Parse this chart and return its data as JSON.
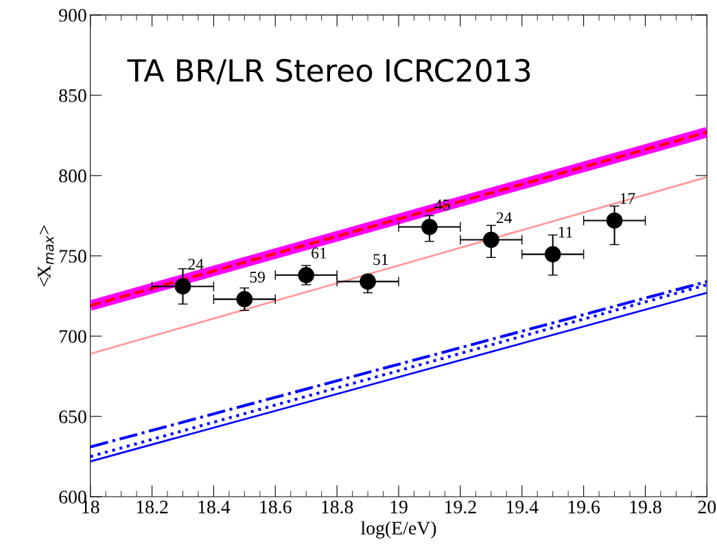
{
  "chart_data": {
    "type": "line",
    "title": "TA BR/LR Stereo ICRC2013",
    "xlabel": "log(E/eV)",
    "ylabel": "<X$_{max}$>",
    "xlim": [
      18,
      20
    ],
    "xticks": [
      18,
      18.2,
      18.4,
      18.6,
      18.8,
      19,
      19.2,
      19.4,
      19.6,
      19.8,
      20
    ],
    "ylim": [
      600,
      900
    ],
    "yticks": [
      600,
      650,
      700,
      750,
      800,
      850,
      900
    ],
    "grid": false,
    "legend": false,
    "series": [
      {
        "color": "#ff00ff",
        "x": [
          18,
          20
        ],
        "values": [
          719,
          827
        ],
        "line_style": "solid"
      },
      {
        "color": "#ff0000",
        "x": [
          18,
          20
        ],
        "values": [
          719,
          827
        ],
        "line_style": "dashed"
      },
      {
        "color": "#ff9999",
        "x": [
          18,
          20
        ],
        "values": [
          689,
          799
        ],
        "line_style": "solid"
      },
      {
        "color": "#0000ff",
        "x": [
          18,
          20
        ],
        "values": [
          622,
          727
        ],
        "line_style": "solid"
      },
      {
        "color": "#0000ff",
        "x": [
          18,
          20
        ],
        "values": [
          625,
          732
        ],
        "line_style": "dotted"
      },
      {
        "color": "#0000ff",
        "x": [
          18,
          20
        ],
        "values": [
          631,
          734
        ],
        "line_style": "dashdot"
      },
      {
        "type": "scatter",
        "color": "#000000",
        "marker": "circle",
        "x": [
          18.3,
          18.5,
          18.7,
          18.9,
          19.1,
          19.3,
          19.5,
          19.7
        ],
        "values": [
          731,
          723,
          738,
          734,
          768,
          760,
          751,
          772
        ],
        "errors": [
          [
            720,
            742
          ],
          [
            716,
            730
          ],
          [
            732,
            744
          ],
          [
            727,
            738
          ],
          [
            759,
            775
          ],
          [
            749,
            769
          ],
          [
            738,
            763
          ],
          [
            757,
            781
          ]
        ],
        "xerrors": [
          0.1,
          0.1,
          0.1,
          0.1,
          0.1,
          0.1,
          0.1,
          0.1
        ]
      }
    ],
    "annotations": [
      {
        "text": "24",
        "x": 18.3,
        "y": 731
      },
      {
        "text": "59",
        "x": 18.5,
        "y": 723
      },
      {
        "text": "61",
        "x": 18.7,
        "y": 738
      },
      {
        "text": "51",
        "x": 18.9,
        "y": 734
      },
      {
        "text": "45",
        "x": 19.1,
        "y": 768
      },
      {
        "text": "24",
        "x": 19.3,
        "y": 760
      },
      {
        "text": "11",
        "x": 19.5,
        "y": 751
      },
      {
        "text": "17",
        "x": 19.7,
        "y": 772
      }
    ]
  }
}
